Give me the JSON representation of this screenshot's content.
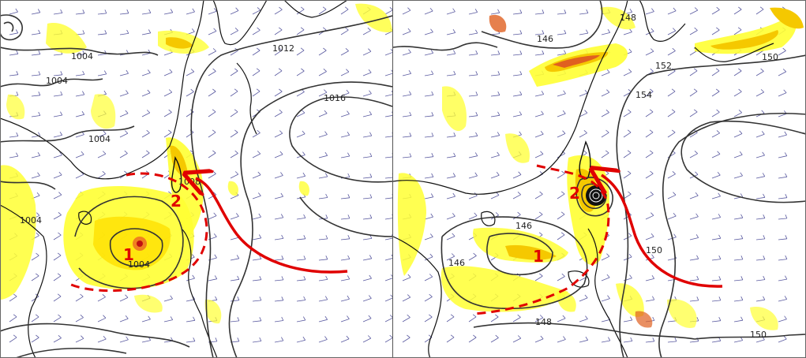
{
  "panels": [
    {
      "id": "left",
      "isobar_labels": [
        "1004",
        "1004",
        "1004",
        "1004",
        "1012",
        "1016",
        "1008",
        "1004"
      ],
      "markers": [
        "1",
        "2"
      ]
    },
    {
      "id": "right",
      "isobar_labels": [
        "148",
        "146",
        "152",
        "154",
        "150",
        "146",
        "146",
        "148",
        "150",
        "150"
      ],
      "markers": [
        "1",
        "2"
      ]
    }
  ],
  "colors": {
    "precip_light": "#ffff33",
    "precip_mid": "#f5c800",
    "precip_heavy": "#e06020",
    "annotation_red": "#e00000",
    "isobar": "#333333",
    "coast": "#111111",
    "wind_barb": "#5a5aa0"
  }
}
